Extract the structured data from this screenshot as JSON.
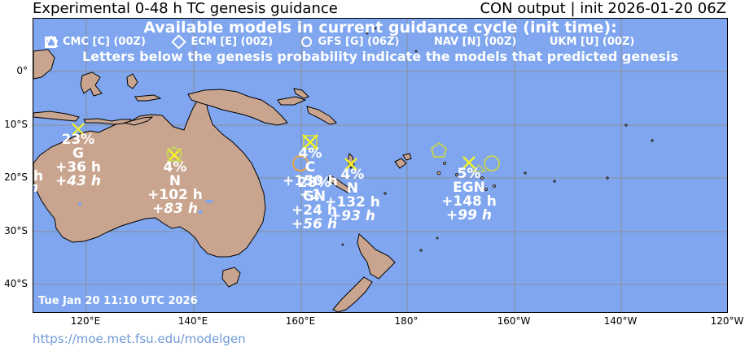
{
  "header": {
    "title_left": "Experimental 0-48 h TC genesis guidance",
    "title_right": "CON output | init 2026-01-20 06Z"
  },
  "map": {
    "banner_title": "Available models in current guidance cycle (init time):",
    "legend": [
      {
        "symbol": "square-icon",
        "text": "CMC [C] (00Z)"
      },
      {
        "symbol": "diamond-icon",
        "text": "ECM [E] (00Z)"
      },
      {
        "symbol": "circle-icon",
        "text": "GFS [G] (06Z)"
      },
      {
        "symbol": "pentagon-icon",
        "text": "NAV [N] (00Z)"
      },
      {
        "symbol": "triangle-icon",
        "text": "UKM [U] (00Z)"
      }
    ],
    "note": "Letters below the genesis probability indicate the models that predicted genesis",
    "timestamp": "Tue Jan 20 11:10 UTC 2026",
    "colors": {
      "ocean": "#7fa6ef",
      "land": "#c9a58f",
      "marker_yellow": "#f2f22a",
      "marker_olive": "#c4cf5c",
      "marker_orange": "#e8a545",
      "text": "#ffffff"
    },
    "lat_labels": [
      "0°",
      "10°S",
      "20°S",
      "30°S",
      "40°S"
    ],
    "lon_labels": [
      "120°E",
      "140°E",
      "160°E",
      "180°",
      "160°W",
      "140°W",
      "120°W"
    ],
    "left_edge_fragments": [
      "h",
      "h"
    ],
    "systems": [
      {
        "prob": "23%",
        "models": "G",
        "t1": "+36 h",
        "t2": "+43 h"
      },
      {
        "prob": "4%",
        "models": "N",
        "t1": "+102 h",
        "t2": "+83 h"
      },
      {
        "prob": "4%",
        "models": "C",
        "t1": "+150 h",
        "t2": "+1"
      },
      {
        "prob": "28%",
        "models": "GN",
        "t1": "+24 h",
        "t2": "+56 h"
      },
      {
        "prob": "4%",
        "models": "N",
        "t1": "+132 h",
        "t2": "+93 h"
      },
      {
        "prob": "5%",
        "models": "EGN",
        "t1": "+148 h",
        "t2": "+99 h"
      }
    ]
  },
  "footer": {
    "link": "https://moe.met.fsu.edu/modelgen"
  }
}
